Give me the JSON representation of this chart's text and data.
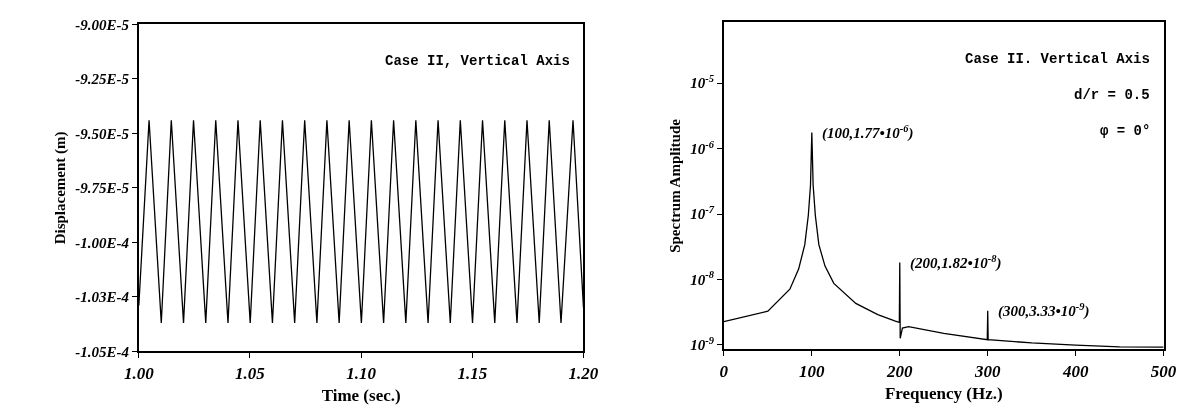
{
  "chart_data": [
    {
      "type": "line",
      "xlabel": "Time (sec.)",
      "ylabel": "Displacement (m)",
      "annotations": [
        "Case II, Vertical Axis"
      ],
      "x": [
        1.0,
        1.0046,
        1.0101,
        1.0146,
        1.0201,
        1.0246,
        1.0301,
        1.0346,
        1.0401,
        1.0446,
        1.0501,
        1.0546,
        1.0601,
        1.0646,
        1.0701,
        1.0746,
        1.0801,
        1.0846,
        1.0901,
        1.0946,
        1.1001,
        1.1046,
        1.1101,
        1.1146,
        1.1201,
        1.1246,
        1.1301,
        1.1346,
        1.1401,
        1.1446,
        1.1501,
        1.1546,
        1.1601,
        1.1646,
        1.1701,
        1.1746,
        1.1801,
        1.1846,
        1.1899,
        1.1953,
        1.2
      ],
      "series": [
        {
          "color": "#000000",
          "values": [
            -0.0001029,
            -9.44e-05,
            -0.0001037,
            -9.44e-05,
            -0.0001037,
            -9.44e-05,
            -0.0001037,
            -9.44e-05,
            -0.0001037,
            -9.44e-05,
            -0.0001037,
            -9.44e-05,
            -0.0001037,
            -9.44e-05,
            -0.0001037,
            -9.44e-05,
            -0.0001037,
            -9.44e-05,
            -0.0001037,
            -9.44e-05,
            -0.0001037,
            -9.44e-05,
            -0.0001037,
            -9.44e-05,
            -0.0001037,
            -9.44e-05,
            -0.0001037,
            -9.44e-05,
            -0.0001037,
            -9.44e-05,
            -0.0001037,
            -9.44e-05,
            -0.0001037,
            -9.44e-05,
            -0.0001037,
            -9.44e-05,
            -0.0001037,
            -9.44e-05,
            -0.0001037,
            -9.44e-05,
            -0.000103
          ]
        }
      ],
      "xlim": [
        1.0,
        1.2
      ],
      "xticks": [
        {
          "value": 1.0,
          "label": "1.00"
        },
        {
          "value": 1.05,
          "label": "1.05"
        },
        {
          "value": 1.1,
          "label": "1.10"
        },
        {
          "value": 1.15,
          "label": "1.15"
        },
        {
          "value": 1.2,
          "label": "1.20"
        }
      ],
      "ylim": [
        -0.000105,
        -9e-05
      ],
      "yticks": [
        {
          "value": -0.000105,
          "label": "-1.05E-4"
        },
        {
          "value": -0.0001025,
          "label": "-1.03E-4"
        },
        {
          "value": -0.0001,
          "label": "-1.00E-4"
        },
        {
          "value": -9.75e-05,
          "label": "-9.75E-5"
        },
        {
          "value": -9.5e-05,
          "label": "-9.50E-5"
        },
        {
          "value": -9.25e-05,
          "label": "-9.25E-5"
        },
        {
          "value": -9e-05,
          "label": "-9.00E-5"
        }
      ]
    },
    {
      "type": "line",
      "xlabel": "Frequency (Hz.)",
      "ylabel": "Spectrum Amplitude",
      "log": "y",
      "annotations": [
        "Case II. Vertical Axis",
        "d/r = 0.5",
        "φ = 0°",
        {
          "text": "(100,1.77•10$^{-6}$)",
          "x": 100,
          "y": 1.77e-06
        },
        {
          "text": "(200,1.82•10$^{-8}$)",
          "x": 200,
          "y": 1.82e-08
        },
        {
          "text": "(300,3.33•10$^{-9}$)",
          "x": 300,
          "y": 3.33e-09
        }
      ],
      "x": [
        0,
        50,
        75,
        85,
        92,
        96,
        98.5,
        100,
        101.5,
        104,
        108,
        115,
        125,
        150,
        175,
        195,
        199.5,
        200,
        200.5,
        203,
        210,
        250,
        299.5,
        300,
        300.5,
        350,
        400,
        450,
        500
      ],
      "series": [
        {
          "color": "#000000",
          "values": [
            2.27e-09,
            3.27e-09,
            7.1e-09,
            1.44e-08,
            3.4e-08,
            9.5e-08,
            2.75e-07,
            1.77e-06,
            2.75e-07,
            9.5e-08,
            3.4e-08,
            1.6e-08,
            8.7e-09,
            4.3e-09,
            2.9e-09,
            2.3e-09,
            2.2e-09,
            1.82e-08,
            1.26e-09,
            1.8e-09,
            1.9e-09,
            1.5e-09,
            1.2e-09,
            3.33e-09,
            1.2e-09,
            1.07e-09,
            9.9e-10,
            9.3e-10,
            9.2e-10
          ]
        }
      ],
      "xlim": [
        0,
        500
      ],
      "xticks": [
        0,
        100,
        200,
        300,
        400,
        500
      ],
      "ylim": [
        8.5e-10,
        8.5e-05
      ],
      "yticks": [
        {
          "value": 1e-09,
          "label": "10$^{-9}$"
        },
        {
          "value": 1e-08,
          "label": "10$^{-8}$"
        },
        {
          "value": 1e-07,
          "label": "10$^{-7}$"
        },
        {
          "value": 1e-06,
          "label": "10$^{-6}$"
        },
        {
          "value": 1e-05,
          "label": "10$^{-5}$"
        }
      ]
    }
  ]
}
